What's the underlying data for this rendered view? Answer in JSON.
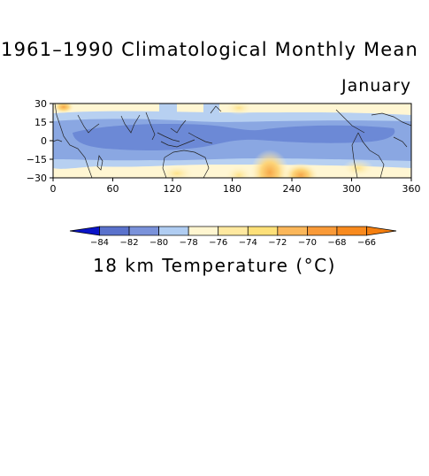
{
  "header": {
    "title": "1961–1990 Climatological Monthly Mean",
    "month": "January"
  },
  "caption": "18 km Temperature (°C)",
  "axes": {
    "x_ticks": [
      "0",
      "60",
      "120",
      "180",
      "240",
      "300",
      "360"
    ],
    "y_ticks": [
      "30",
      "15",
      "0",
      "−15",
      "−30"
    ],
    "x_range": [
      0,
      360
    ],
    "y_range": [
      -30,
      30
    ]
  },
  "colorbar": {
    "levels": [
      "−84",
      "−82",
      "−80",
      "−78",
      "−76",
      "−74",
      "−72",
      "−70",
      "−68",
      "−66"
    ],
    "colors": [
      "#0a14c8",
      "#5a72cc",
      "#7a92da",
      "#b0cdf2",
      "#fff6d0",
      "#ffe9a0",
      "#fde079",
      "#fbb75a",
      "#f99a38",
      "#f88a1e",
      "#f57f10"
    ]
  }
}
